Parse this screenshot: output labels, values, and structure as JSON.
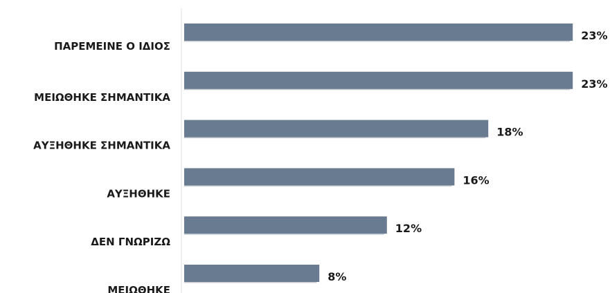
{
  "chart_data": {
    "type": "bar",
    "orientation": "horizontal",
    "categories": [
      "ΠΑΡΕΜΕΙΝΕ Ο ΙΔΙΟΣ",
      "ΜΕΙΩΘΗΚΕ ΣΗΜΑΝΤΙΚΑ",
      "ΑΥΞΗΘΗΚΕ ΣΗΜΑΝΤΙΚΑ",
      "ΑΥΞΗΘΗΚΕ",
      "ΔΕΝ ΓΝΩΡΙΖΩ",
      "ΜΕΙΩΘΗΚΕ"
    ],
    "values": [
      23,
      23,
      18,
      16,
      12,
      8
    ],
    "value_labels": [
      "23%",
      "23%",
      "18%",
      "16%",
      "12%",
      "8%"
    ],
    "unit": "%",
    "xlim": [
      0,
      25
    ],
    "grid": false,
    "legend": false,
    "bar_color": "#687b91",
    "text_color": "#1a1a1a"
  }
}
